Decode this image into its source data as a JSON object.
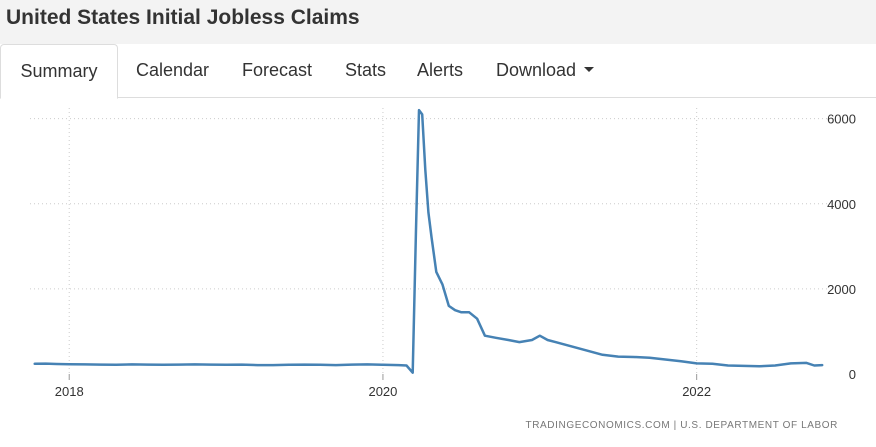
{
  "page_title": "United States Initial Jobless Claims",
  "tabs": [
    {
      "label": "Summary",
      "active": true
    },
    {
      "label": "Calendar"
    },
    {
      "label": "Forecast"
    },
    {
      "label": "Stats"
    },
    {
      "label": "Alerts"
    },
    {
      "label": "Download",
      "dropdown": true
    }
  ],
  "source": "TRADINGECONOMICS.COM  |  U.S. DEPARTMENT OF LABOR",
  "chart_data": {
    "type": "line",
    "title": "",
    "xlabel": "",
    "ylabel": "",
    "x_range": [
      2017.75,
      2022.85
    ],
    "ylim": [
      0,
      6250
    ],
    "x_ticks": [
      2018,
      2020,
      2022
    ],
    "x_tick_labels": [
      "2018",
      "2020",
      "2022"
    ],
    "y_ticks": [
      0,
      2000,
      4000,
      6000
    ],
    "y_tick_labels": [
      "0",
      "2000",
      "4000",
      "6000"
    ],
    "y_axis_position": "right",
    "grid": "dotted",
    "color": "#4682b4",
    "series": [
      {
        "x": [
          2017.78,
          2017.85,
          2017.92,
          2018.0,
          2018.1,
          2018.2,
          2018.3,
          2018.4,
          2018.5,
          2018.6,
          2018.7,
          2018.8,
          2018.9,
          2019.0,
          2019.1,
          2019.2,
          2019.3,
          2019.4,
          2019.5,
          2019.6,
          2019.7,
          2019.8,
          2019.9,
          2020.0,
          2020.1,
          2020.15,
          2020.19,
          2020.21,
          2020.23,
          2020.25,
          2020.27,
          2020.29,
          2020.31,
          2020.34,
          2020.38,
          2020.42,
          2020.46,
          2020.5,
          2020.55,
          2020.6,
          2020.65,
          2020.72,
          2020.8,
          2020.87,
          2020.95,
          2021.0,
          2021.05,
          2021.1,
          2021.2,
          2021.3,
          2021.4,
          2021.5,
          2021.6,
          2021.7,
          2021.8,
          2021.9,
          2022.0,
          2022.1,
          2022.2,
          2022.3,
          2022.4,
          2022.5,
          2022.6,
          2022.7,
          2022.75,
          2022.8
        ],
        "y": [
          240,
          245,
          235,
          230,
          225,
          220,
          215,
          225,
          220,
          215,
          220,
          225,
          220,
          215,
          220,
          210,
          210,
          215,
          220,
          215,
          210,
          220,
          225,
          215,
          210,
          200,
          30,
          3300,
          6200,
          6100,
          4800,
          3800,
          3200,
          2400,
          2100,
          1600,
          1500,
          1450,
          1450,
          1300,
          900,
          850,
          800,
          750,
          800,
          900,
          800,
          750,
          650,
          550,
          450,
          410,
          400,
          380,
          340,
          300,
          250,
          240,
          200,
          190,
          180,
          200,
          250,
          260,
          200,
          210
        ]
      }
    ]
  }
}
